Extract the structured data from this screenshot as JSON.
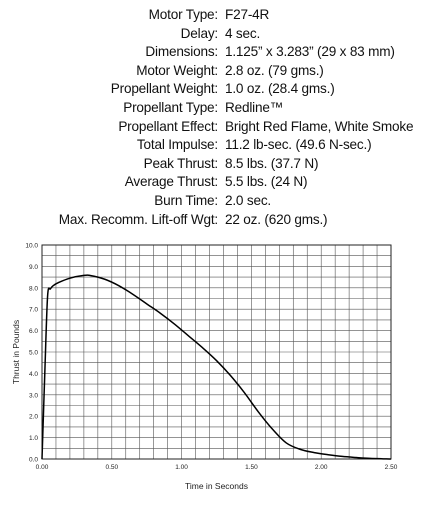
{
  "specs": [
    {
      "label": "Motor Type:",
      "value": "F27-4R"
    },
    {
      "label": "Delay:",
      "value": "4 sec."
    },
    {
      "label": "Dimensions:",
      "value": "1.125” x 3.283” (29 x 83 mm)"
    },
    {
      "label": "Motor Weight:",
      "value": "2.8 oz. (79 gms.)"
    },
    {
      "label": "Propellant Weight:",
      "value": "1.0 oz. (28.4 gms.)"
    },
    {
      "label": "Propellant Type:",
      "value": "Redline™"
    },
    {
      "label": "Propellant Effect:",
      "value": "Bright Red Flame, White Smoke"
    },
    {
      "label": "Total Impulse:",
      "value": "11.2 lb-sec. (49.6 N-sec.)"
    },
    {
      "label": "Peak Thrust:",
      "value": "8.5 lbs. (37.7 N)"
    },
    {
      "label": "Average Thrust:",
      "value": "5.5 lbs. (24 N)"
    },
    {
      "label": "Burn Time:",
      "value": "2.0 sec."
    },
    {
      "label": "Max. Recomm. Lift-off Wgt:",
      "value": "22 oz. (620 gms.)"
    }
  ],
  "chart_data": {
    "type": "line",
    "xlabel": "Time in Seconds",
    "ylabel": "Thrust in Pounds",
    "xlim": [
      0,
      2.5
    ],
    "ylim": [
      0,
      10
    ],
    "x_ticks": [
      "0.00",
      "0.50",
      "1.00",
      "1.50",
      "2.00",
      "2.50"
    ],
    "y_ticks": [
      "0.0",
      "1.0",
      "2.0",
      "3.0",
      "4.0",
      "5.0",
      "6.0",
      "7.0",
      "8.0",
      "9.0",
      "10.0"
    ],
    "grid": true,
    "series": [
      {
        "color": "#000000",
        "x": [
          0,
          0.02,
          0.04,
          0.06,
          0.08,
          0.12,
          0.2,
          0.3,
          0.35,
          0.45,
          0.55,
          0.65,
          0.75,
          0.85,
          0.95,
          1.05,
          1.15,
          1.25,
          1.35,
          1.45,
          1.55,
          1.65,
          1.75,
          1.85,
          1.95,
          2.05,
          2.15,
          2.25,
          2.35,
          2.5
        ],
        "y": [
          0,
          4.0,
          7.6,
          7.95,
          8.1,
          8.25,
          8.45,
          8.58,
          8.57,
          8.4,
          8.1,
          7.7,
          7.25,
          6.8,
          6.3,
          5.75,
          5.2,
          4.6,
          3.9,
          3.1,
          2.2,
          1.4,
          0.75,
          0.45,
          0.3,
          0.2,
          0.12,
          0.07,
          0.03,
          0.0
        ]
      }
    ]
  }
}
